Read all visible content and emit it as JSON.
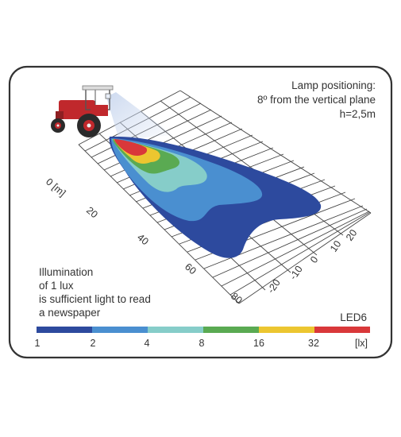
{
  "info": {
    "line1": "Lamp positioning:",
    "line2": "8º from the vertical plane",
    "line3": "h=2,5m"
  },
  "note": {
    "lines": [
      "Illumination",
      "of 1 lux",
      "is sufficient light to read",
      "a newspaper"
    ]
  },
  "model": "LED6",
  "grid": {
    "x_axis_unit": "0 [m]",
    "x_ticks": [
      "20",
      "40",
      "60",
      "80"
    ],
    "y_ticks": [
      "20",
      "10",
      "0",
      "-10",
      "-20"
    ]
  },
  "legend": {
    "unit": "[lx]",
    "ticks": [
      "1",
      "2",
      "4",
      "8",
      "16",
      "32"
    ],
    "colors": [
      "#2d4a9e",
      "#4a8fd0",
      "#86cdc9",
      "#5aaa52",
      "#ecc630",
      "#d9383a"
    ]
  },
  "colors": {
    "frame": "#333333",
    "zone_1": "#2d4a9e",
    "zone_2": "#4a8fd0",
    "zone_4": "#86cdc9",
    "zone_8": "#5aaa52",
    "zone_16": "#ecc630",
    "zone_32": "#d9383a",
    "tractor_body": "#c0282c"
  }
}
